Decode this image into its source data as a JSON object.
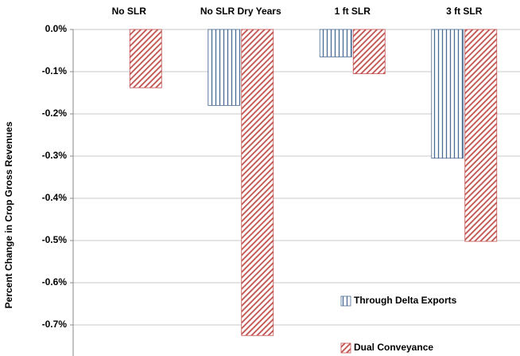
{
  "chart_data": {
    "type": "bar",
    "ylabel": "Percent Change in Crop Gross Revenues",
    "categories": [
      "No SLR",
      "No SLR Dry Years",
      "1 ft SLR",
      "3 ft SLR"
    ],
    "series": [
      {
        "name": "Through Delta Exports",
        "color": "#4a6b94",
        "pattern": "vertical",
        "values": [
          null,
          -0.18,
          -0.065,
          -0.305
        ]
      },
      {
        "name": "Dual Conveyance",
        "color": "#c0504d",
        "pattern": "diagonal",
        "values": [
          -0.138,
          -0.725,
          -0.105,
          -0.502
        ]
      }
    ],
    "ylim": [
      -0.78,
      0
    ],
    "yticks": [
      {
        "value": 0,
        "label": "0.0%"
      },
      {
        "value": -0.1,
        "label": "-0.1%"
      },
      {
        "value": -0.2,
        "label": "-0.2%"
      },
      {
        "value": -0.3,
        "label": "-0.3%"
      },
      {
        "value": -0.4,
        "label": "-0.4%"
      },
      {
        "value": -0.5,
        "label": "-0.5%"
      },
      {
        "value": -0.6,
        "label": "-0.6%"
      },
      {
        "value": -0.7,
        "label": "-0.7%"
      }
    ],
    "grid": true,
    "legend": "lower right"
  }
}
